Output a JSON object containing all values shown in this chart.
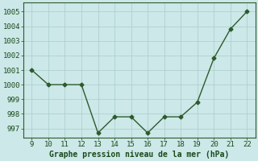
{
  "x": [
    9,
    10,
    11,
    12,
    13,
    14,
    15,
    16,
    17,
    18,
    19,
    20,
    21,
    22
  ],
  "y": [
    1001.0,
    1000.0,
    1000.0,
    1000.0,
    996.7,
    997.8,
    997.8,
    996.7,
    997.8,
    997.8,
    998.8,
    1001.8,
    1003.8,
    1005.0
  ],
  "line_color": "#2d5a2d",
  "marker": "D",
  "marker_size": 2.5,
  "xlabel": "Graphe pression niveau de la mer (hPa)",
  "xlim": [
    8.5,
    22.5
  ],
  "ylim": [
    996.4,
    1005.6
  ],
  "yticks": [
    997,
    998,
    999,
    1000,
    1001,
    1002,
    1003,
    1004,
    1005
  ],
  "xticks": [
    9,
    10,
    11,
    12,
    13,
    14,
    15,
    16,
    17,
    18,
    19,
    20,
    21,
    22
  ],
  "bg_color": "#cce8e8",
  "grid_color_major": "#aacccc",
  "xlabel_fontsize": 7,
  "tick_fontsize": 6.5,
  "xlabel_color": "#1a4a1a",
  "tick_color": "#1a4a1a",
  "linewidth": 1.0
}
